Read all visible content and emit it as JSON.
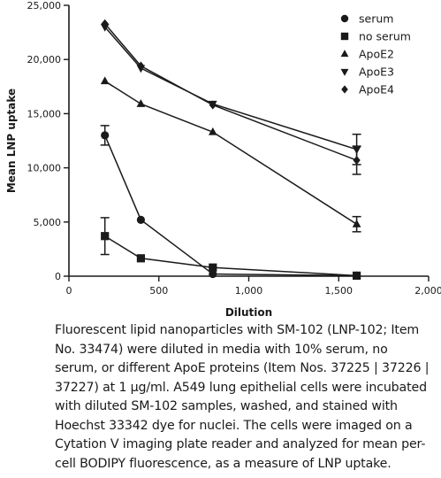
{
  "chart_data": {
    "type": "line",
    "xlabel": "Dilution",
    "ylabel": "Mean LNP uptake",
    "xlim": [
      0,
      2000
    ],
    "ylim": [
      0,
      25000
    ],
    "xticks": [
      0,
      500,
      1000,
      1500,
      2000
    ],
    "xtick_labels": [
      "0",
      "500",
      "1,000",
      "1,500",
      "2,000"
    ],
    "yticks": [
      0,
      5000,
      10000,
      15000,
      20000,
      25000
    ],
    "ytick_labels": [
      "0",
      "5,000",
      "10,000",
      "15,000",
      "20,000",
      "25,000"
    ],
    "legend_position": "top-right",
    "series": [
      {
        "name": "serum",
        "marker": "circle",
        "x": [
          200,
          400,
          800,
          1600
        ],
        "y": [
          13000,
          5200,
          200,
          50
        ],
        "err": [
          900,
          0,
          0,
          0
        ]
      },
      {
        "name": "no serum",
        "marker": "square",
        "x": [
          200,
          400,
          800,
          1600
        ],
        "y": [
          3700,
          1650,
          800,
          50
        ],
        "err": [
          1700,
          0,
          0,
          0
        ]
      },
      {
        "name": "ApoE2",
        "marker": "triangle-up",
        "x": [
          200,
          400,
          800,
          1600
        ],
        "y": [
          18000,
          15900,
          13300,
          4800
        ],
        "err": [
          0,
          0,
          0,
          700
        ]
      },
      {
        "name": "ApoE3",
        "marker": "triangle-down",
        "x": [
          200,
          400,
          800,
          1600
        ],
        "y": [
          23000,
          19200,
          15900,
          11700
        ],
        "err": [
          0,
          0,
          0,
          1400
        ]
      },
      {
        "name": "ApoE4",
        "marker": "diamond",
        "x": [
          200,
          400,
          800,
          1600
        ],
        "y": [
          23300,
          19400,
          15800,
          10700
        ],
        "err": [
          0,
          0,
          0,
          1300
        ]
      }
    ]
  },
  "caption": "Fluorescent lipid nanoparticles with SM-102 (LNP-102; Item No. 33474) were diluted in media with 10% serum, no serum, or different ApoE proteins (Item Nos. 37225 | 37226 | 37227) at 1 µg/ml. A549 lung epithelial cells were incubated with diluted SM-102 samples, washed, and stained with Hoechst 33342 dye for nuclei. The cells were imaged on a Cytation V imaging plate reader and analyzed for mean per-cell BODIPY fluorescence, as a measure of LNP uptake."
}
